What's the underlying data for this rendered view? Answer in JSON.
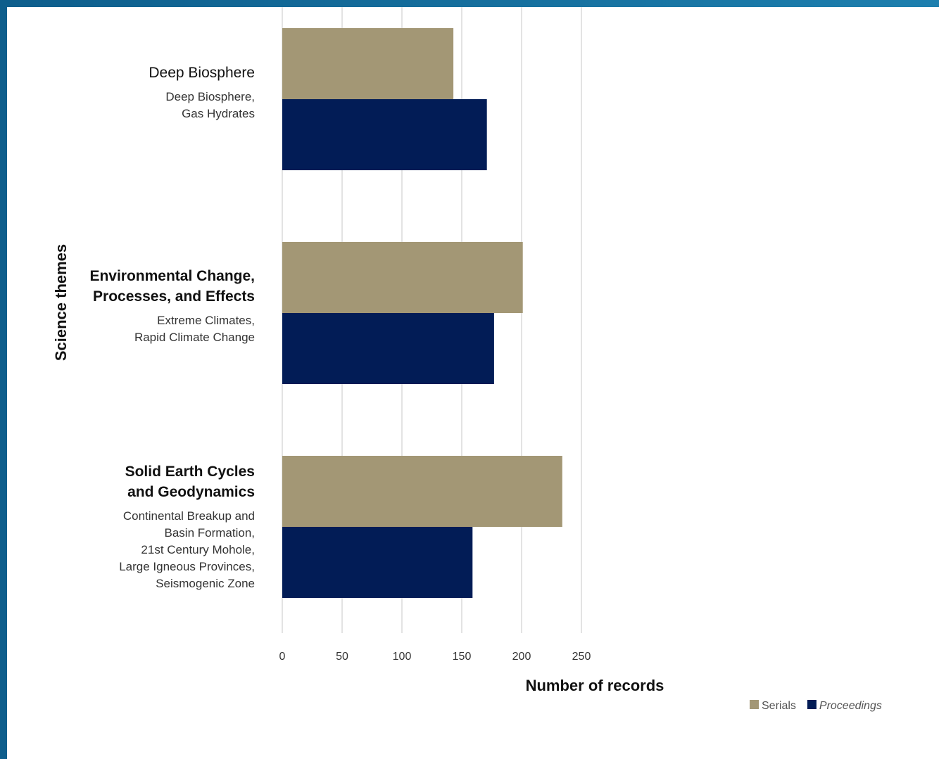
{
  "chart_data": {
    "type": "bar",
    "orientation": "horizontal",
    "xlabel": "Number of records",
    "ylabel": "Science themes",
    "xlim": [
      0,
      250
    ],
    "xticks": [
      0,
      50,
      100,
      150,
      200,
      250
    ],
    "grid": true,
    "legend_position": "bottom-right",
    "categories": [
      {
        "title_lines": [
          "Deep Biosphere"
        ],
        "title_bold": false,
        "sub_lines": [
          "Deep Biosphere,",
          "Gas Hydrates"
        ]
      },
      {
        "title_lines": [
          "Environmental Change,",
          "Processes, and Effects"
        ],
        "title_bold": true,
        "sub_lines": [
          "Extreme Climates,",
          "Rapid Climate Change"
        ]
      },
      {
        "title_lines": [
          "Solid Earth Cycles",
          "and Geodynamics"
        ],
        "title_bold": true,
        "sub_lines": [
          "Continental Breakup and",
          "Basin Formation,",
          "21st Century Mohole,",
          "Large Igneous Provinces,",
          "Seismogenic Zone"
        ]
      }
    ],
    "series": [
      {
        "name": "Serials",
        "color": "#a39775",
        "italic": false,
        "values": [
          143,
          201,
          234
        ]
      },
      {
        "name": "Proceedings",
        "color": "#021c56",
        "italic": true,
        "values": [
          171,
          177,
          159
        ]
      }
    ]
  }
}
